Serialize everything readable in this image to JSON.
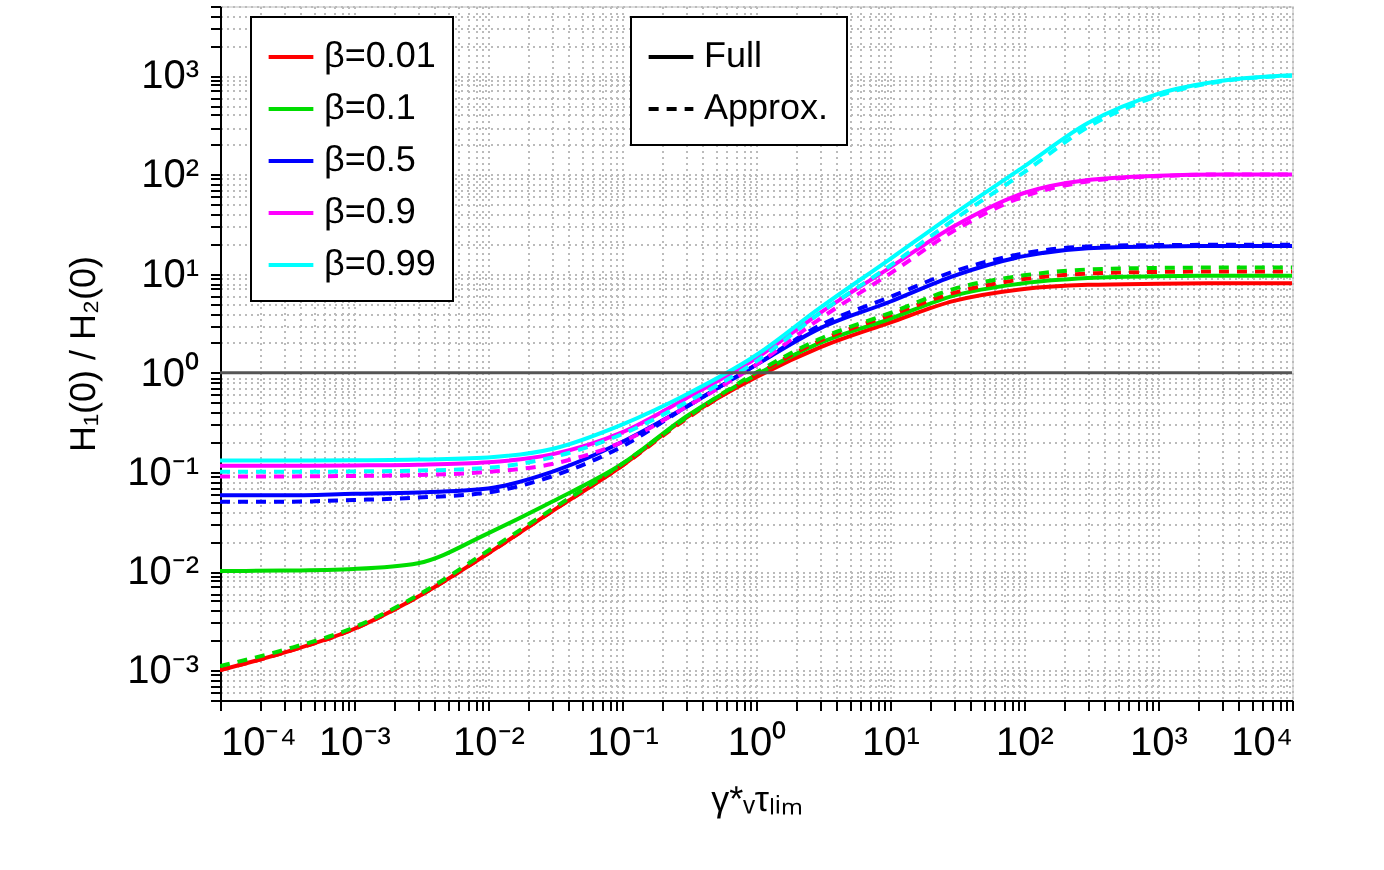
{
  "chart_data": {
    "type": "line",
    "xlabel": "γ*ᵥτₗᵢₘ",
    "ylabel": "H₁(0) / H₂(0)",
    "x": [
      0.0001,
      0.0003,
      0.001,
      0.003,
      0.01,
      0.03,
      0.1,
      0.3,
      1,
      3,
      10,
      30,
      100,
      300,
      1000,
      3000,
      10000
    ],
    "series": [
      {
        "name": "β=0.01",
        "color": "#ff0000",
        "line_style": "solid",
        "values": [
          0.001,
          0.0015,
          0.0026,
          0.0055,
          0.015,
          0.04,
          0.115,
          0.35,
          0.9,
          1.8,
          3.2,
          5.3,
          7.0,
          7.7,
          7.9,
          8.0,
          8.0
        ]
      },
      {
        "name": "β=0.1",
        "color": "#00dd00",
        "line_style": "solid",
        "values": [
          0.01,
          0.0101,
          0.0105,
          0.012,
          0.024,
          0.05,
          0.12,
          0.36,
          0.95,
          2.0,
          3.5,
          6.0,
          8.0,
          9.0,
          9.4,
          9.5,
          9.5
        ]
      },
      {
        "name": "β=0.5",
        "color": "#0000ff",
        "line_style": "solid",
        "values": [
          0.058,
          0.058,
          0.06,
          0.062,
          0.068,
          0.1,
          0.2,
          0.45,
          1.2,
          2.8,
          5.2,
          9.5,
          15,
          18,
          18.8,
          19,
          19
        ]
      },
      {
        "name": "β=0.9",
        "color": "#ff00ff",
        "line_style": "solid",
        "values": [
          0.115,
          0.115,
          0.116,
          0.118,
          0.125,
          0.15,
          0.25,
          0.55,
          1.4,
          4,
          11.5,
          30,
          65,
          88,
          97,
          100,
          100
        ]
      },
      {
        "name": "β=0.99",
        "color": "#00ffff",
        "line_style": "solid",
        "values": [
          0.13,
          0.13,
          0.131,
          0.133,
          0.14,
          0.17,
          0.3,
          0.6,
          1.5,
          4.5,
          14,
          40,
          120,
          330,
          650,
          880,
          1000
        ]
      },
      {
        "color": "#ff0000",
        "line_style": "dashed",
        "values": [
          0.001,
          0.0015,
          0.0026,
          0.0055,
          0.015,
          0.04,
          0.115,
          0.34,
          0.95,
          2.1,
          3.8,
          6.4,
          8.8,
          10.0,
          10.4,
          10.5,
          10.5
        ]
      },
      {
        "color": "#00dd00",
        "line_style": "dashed",
        "values": [
          0.0011,
          0.0016,
          0.0027,
          0.0057,
          0.016,
          0.042,
          0.12,
          0.35,
          1.0,
          2.2,
          4.0,
          7.0,
          9.6,
          11.0,
          11.4,
          11.5,
          11.5
        ]
      },
      {
        "color": "#0000ff",
        "line_style": "dashed",
        "values": [
          0.05,
          0.05,
          0.052,
          0.055,
          0.062,
          0.09,
          0.18,
          0.45,
          1.2,
          3.0,
          5.8,
          10.5,
          16,
          18.8,
          19.4,
          19.5,
          19.5
        ]
      },
      {
        "color": "#ff00ff",
        "line_style": "dashed",
        "values": [
          0.09,
          0.09,
          0.091,
          0.093,
          0.1,
          0.12,
          0.2,
          0.45,
          1.2,
          3.5,
          10,
          27,
          60,
          85,
          96,
          100,
          100
        ]
      },
      {
        "color": "#00ffff",
        "line_style": "dashed",
        "values": [
          0.1,
          0.1,
          0.101,
          0.103,
          0.11,
          0.14,
          0.24,
          0.5,
          1.3,
          4,
          12,
          35,
          105,
          300,
          620,
          870,
          990
        ]
      }
    ],
    "annotations": [
      "Full",
      "Approx."
    ],
    "log": "xy",
    "xlim": [
      0.0001,
      10000
    ],
    "ylim": [
      0.0005,
      5000
    ],
    "xticks": [
      {
        "value": 0.0001,
        "label": "10⁻⁴"
      },
      {
        "value": 0.001,
        "label": "10⁻³"
      },
      {
        "value": 0.01,
        "label": "10⁻²"
      },
      {
        "value": 0.1,
        "label": "10⁻¹"
      },
      {
        "value": 1,
        "label": "10⁰"
      },
      {
        "value": 10,
        "label": "10¹"
      },
      {
        "value": 100,
        "label": "10²"
      },
      {
        "value": 1000,
        "label": "10³"
      },
      {
        "value": 10000,
        "label": "10⁴"
      }
    ],
    "yticks": [
      {
        "value": 0.001,
        "label": "10⁻³"
      },
      {
        "value": 0.01,
        "label": "10⁻²"
      },
      {
        "value": 0.1,
        "label": "10⁻¹"
      },
      {
        "value": 1,
        "label": "10⁰"
      },
      {
        "value": 10,
        "label": "10¹"
      },
      {
        "value": 100,
        "label": "10²"
      },
      {
        "value": 1000,
        "label": "10³"
      }
    ],
    "ref_lines": [
      {
        "axis": "y",
        "value": 1,
        "color": "#555555"
      }
    ],
    "grid": true,
    "legend": "top left",
    "marker": "none"
  }
}
